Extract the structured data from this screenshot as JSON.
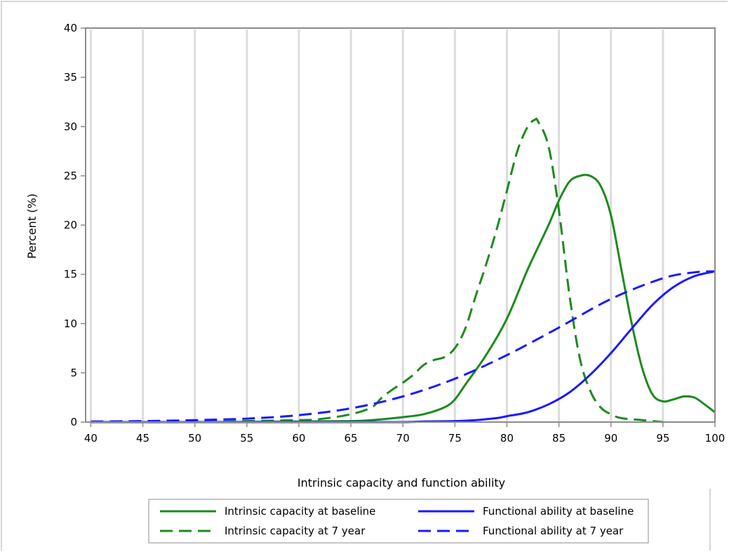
{
  "chart_data": {
    "type": "line",
    "xlabel": "Intrinsic capacity and function ability",
    "ylabel": "Percent (%)",
    "xlim": [
      39.5,
      100
    ],
    "ylim": [
      0,
      40
    ],
    "x_ticks": [
      40,
      45,
      50,
      55,
      60,
      65,
      70,
      75,
      80,
      85,
      90,
      95,
      100
    ],
    "y_ticks": [
      0,
      5,
      10,
      15,
      20,
      25,
      30,
      35,
      40
    ],
    "grid": "vertical",
    "legend_position": "bottom",
    "series": [
      {
        "name": "Intrinsic capacity at baseline",
        "color": "#1e8a1e",
        "dash": "solid",
        "x": [
          40,
          50,
          60,
          65,
          67,
          70,
          72,
          74,
          75,
          76,
          78,
          80,
          82,
          84,
          85,
          86,
          87,
          88,
          89,
          90,
          91,
          92,
          93,
          94,
          95,
          96,
          97,
          98,
          99,
          100
        ],
        "y": [
          0,
          0,
          0.05,
          0.1,
          0.2,
          0.5,
          0.8,
          1.5,
          2.3,
          3.8,
          6.8,
          10.5,
          15.5,
          20.0,
          22.5,
          24.4,
          25.0,
          25.0,
          24.0,
          21.0,
          15.5,
          10.0,
          5.5,
          2.8,
          2.1,
          2.3,
          2.6,
          2.5,
          1.8,
          1.0
        ]
      },
      {
        "name": "Intrinsic capacity at 7 year",
        "color": "#1e8a1e",
        "dash": "dashed",
        "x": [
          40,
          50,
          55,
          60,
          62,
          65,
          67,
          68,
          69,
          70,
          71,
          72,
          73,
          74,
          75,
          76,
          77,
          78,
          79,
          80,
          81,
          82,
          82.7,
          83,
          84,
          85,
          86,
          87,
          88,
          89,
          90,
          91,
          93,
          95
        ],
        "y": [
          0,
          0,
          0.1,
          0.2,
          0.3,
          0.8,
          1.5,
          2.5,
          3.3,
          4.0,
          4.8,
          5.8,
          6.3,
          6.6,
          7.5,
          9.5,
          12.8,
          16.0,
          19.5,
          23.5,
          27.5,
          30.0,
          30.7,
          30.5,
          28.0,
          21.5,
          13.0,
          6.5,
          3.2,
          1.5,
          0.8,
          0.4,
          0.2,
          0.0
        ]
      },
      {
        "name": "Functional ability at baseline",
        "color": "#1a1aff",
        "dash": "solid",
        "x": [
          40,
          50,
          60,
          65,
          70,
          72,
          75,
          77,
          79,
          80,
          82,
          84,
          86,
          88,
          90,
          92,
          94,
          96,
          98,
          100
        ],
        "y": [
          0,
          0,
          0,
          0,
          0,
          0.05,
          0.1,
          0.2,
          0.4,
          0.6,
          1.0,
          1.8,
          3.0,
          4.8,
          7.0,
          9.5,
          11.9,
          13.7,
          14.8,
          15.3
        ]
      },
      {
        "name": "Functional ability at 7 year",
        "color": "#1a1aff",
        "dash": "dashed",
        "x": [
          40,
          45,
          50,
          55,
          60,
          65,
          70,
          75,
          80,
          85,
          90,
          95,
          98,
          100
        ],
        "y": [
          0.05,
          0.1,
          0.2,
          0.35,
          0.7,
          1.4,
          2.6,
          4.4,
          6.8,
          9.6,
          12.5,
          14.6,
          15.2,
          15.3
        ]
      }
    ]
  }
}
